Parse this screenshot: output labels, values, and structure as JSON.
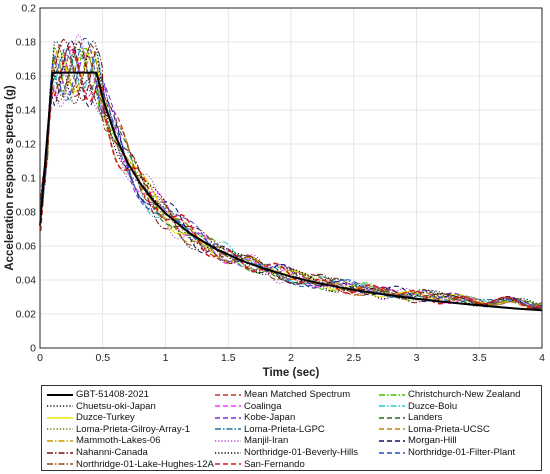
{
  "chart_data": {
    "type": "line",
    "xlabel": "Time (sec)",
    "ylabel": "Acceleration response spectra (g)",
    "xlim": [
      0,
      4
    ],
    "ylim": [
      0,
      0.2
    ],
    "xticks": [
      "0",
      "0.5",
      "1",
      "1.5",
      "2",
      "2.5",
      "3",
      "3.5",
      "4"
    ],
    "yticks": [
      "0",
      "0.02",
      "0.04",
      "0.06",
      "0.08",
      "0.1",
      "0.12",
      "0.14",
      "0.16",
      "0.18",
      "0.2"
    ],
    "grid": true,
    "legend_position": "bottom",
    "series": [
      {
        "name": "GBT-51408-2021",
        "color": "#000000",
        "dash": "solid",
        "width": 2.0
      },
      {
        "name": "Mean Matched Spectrum",
        "color": "#c0392b",
        "dash": "dash",
        "width": 1.2
      },
      {
        "name": "Christchurch-New Zealand",
        "color": "#44c000",
        "dash": "dashdot",
        "width": 1.0
      },
      {
        "name": "Chuetsu-oki-Japan",
        "color": "#111111",
        "dash": "dot",
        "width": 1.0
      },
      {
        "name": "Coalinga",
        "color": "#ff33ff",
        "dash": "dash",
        "width": 1.0
      },
      {
        "name": "Duzce-Bolu",
        "color": "#22cccc",
        "dash": "dashdot",
        "width": 1.0
      },
      {
        "name": "Duzce-Turkey",
        "color": "#e8e800",
        "dash": "solid",
        "width": 1.0
      },
      {
        "name": "Kobe-Japan",
        "color": "#7a2bd6",
        "dash": "dash",
        "width": 1.0
      },
      {
        "name": "Landers",
        "color": "#1f6b1f",
        "dash": "dash",
        "width": 1.0
      },
      {
        "name": "Loma-Prieta-Gilroy-Array-1",
        "color": "#6b6b00",
        "dash": "dot",
        "width": 1.0
      },
      {
        "name": "Loma-Prieta-LGPC",
        "color": "#1a6fa0",
        "dash": "dashdot",
        "width": 1.0
      },
      {
        "name": "Loma-Prieta-UCSC",
        "color": "#b8860b",
        "dash": "dash",
        "width": 1.0
      },
      {
        "name": "Mammoth-Lakes-06",
        "color": "#c89a00",
        "dash": "dashdot",
        "width": 1.0
      },
      {
        "name": "Manjil-Iran",
        "color": "#b040d0",
        "dash": "dot",
        "width": 1.0
      },
      {
        "name": "Morgan-Hill",
        "color": "#101060",
        "dash": "dash",
        "width": 1.0
      },
      {
        "name": "Nahanni-Canada",
        "color": "#7a1010",
        "dash": "dashdot",
        "width": 1.0
      },
      {
        "name": "Northridge-01-Beverly-Hills",
        "color": "#000000",
        "dash": "dot",
        "width": 1.0
      },
      {
        "name": "Northridge-01-Filter-Plant",
        "color": "#1f4fbf",
        "dash": "dash",
        "width": 1.0
      },
      {
        "name": "Northridge-01-Lake-Hughes-12A",
        "color": "#8b4513",
        "dash": "dashdot",
        "width": 1.0
      },
      {
        "name": "San-Fernando",
        "color": "#d41a1a",
        "dash": "dash",
        "width": 1.6
      }
    ],
    "design_spectrum": {
      "name": "GBT-51408-2021",
      "x": [
        0,
        0.1,
        0.45,
        0.5,
        0.6,
        0.7,
        0.8,
        0.9,
        1.0,
        1.2,
        1.4,
        1.6,
        1.8,
        2.0,
        2.2,
        2.4,
        2.6,
        2.8,
        3.0,
        3.2,
        3.4,
        3.6,
        3.8,
        4.0
      ],
      "y": [
        0.072,
        0.162,
        0.162,
        0.1468,
        0.1249,
        0.1089,
        0.0967,
        0.087,
        0.0792,
        0.0671,
        0.0583,
        0.0516,
        0.0463,
        0.042,
        0.0384,
        0.0355,
        0.033,
        0.0309,
        0.029,
        0.0273,
        0.0258,
        0.0244,
        0.0232,
        0.0222
      ]
    }
  }
}
